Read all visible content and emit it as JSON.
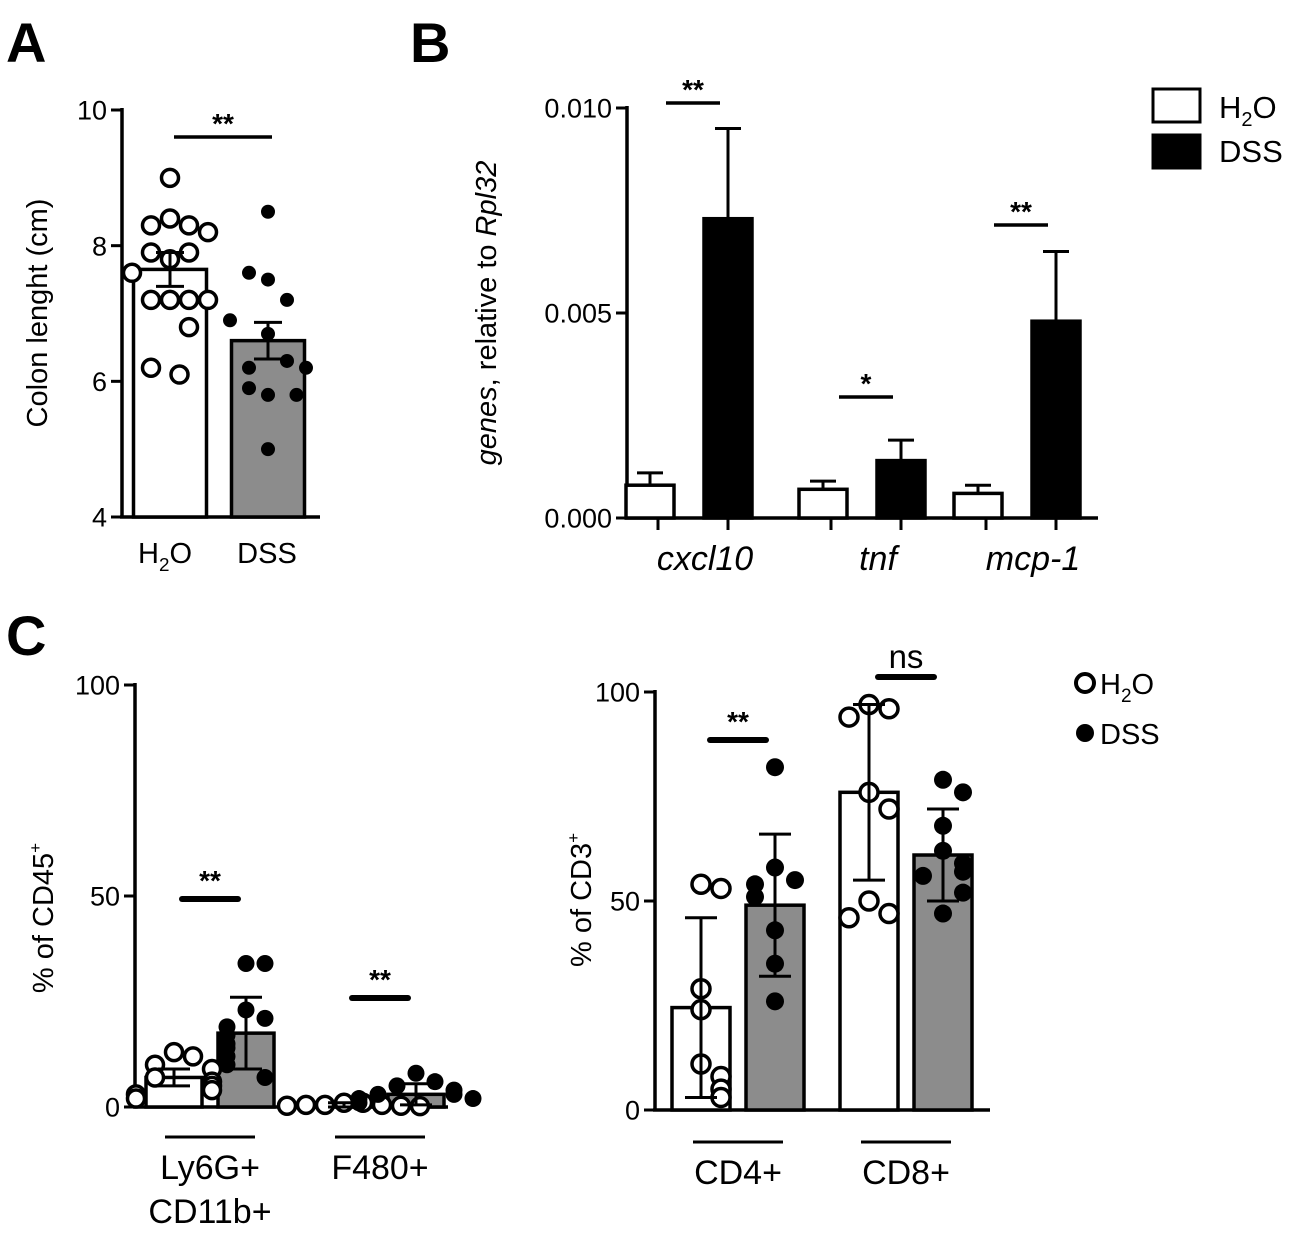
{
  "panels": {
    "A": "A",
    "B": "B",
    "C": "C"
  },
  "chart_data": [
    {
      "id": "A",
      "type": "bar",
      "categories": [
        "H2O",
        "DSS"
      ],
      "category_labels": [
        [
          "H",
          "2",
          "O"
        ],
        "DSS"
      ],
      "ylabel": "Colon lenght (cm)",
      "ylim": [
        4,
        10
      ],
      "yticks": [
        4,
        6,
        8,
        10
      ],
      "values": [
        7.65,
        6.6
      ],
      "errors": [
        0.25,
        0.27
      ],
      "fills": [
        "#ffffff",
        "#8c8c8c"
      ],
      "points": [
        [
          9.0,
          8.4,
          8.3,
          8.3,
          8.2,
          7.9,
          7.9,
          7.8,
          7.6,
          7.2,
          7.2,
          7.2,
          7.2,
          6.8,
          6.2,
          6.1
        ],
        [
          8.5,
          7.6,
          7.5,
          7.2,
          6.9,
          6.7,
          6.3,
          6.2,
          6.2,
          5.9,
          5.8,
          5.8,
          5.0
        ]
      ],
      "significance": [
        {
          "pair": [
            0,
            1
          ],
          "label": "**"
        }
      ]
    },
    {
      "id": "B",
      "type": "bar",
      "categories": [
        "cxcl10",
        "tnf",
        "mcp-1"
      ],
      "ylabel": {
        "italic": "genes",
        "plain": ", relative to ",
        "italic2": "Rpl32"
      },
      "ylim": [
        0,
        0.01
      ],
      "yticks": [
        "0.000",
        "0.005",
        "0.010"
      ],
      "series": [
        {
          "name": "H2O",
          "values": [
            0.0008,
            0.0007,
            0.0006
          ],
          "errors": [
            0.0003,
            0.0002,
            0.0002
          ],
          "color": "#ffffff"
        },
        {
          "name": "DSS",
          "values": [
            0.0073,
            0.0014,
            0.0048
          ],
          "errors": [
            0.0022,
            0.0005,
            0.0017
          ],
          "color": "#000000"
        }
      ],
      "legend": [
        {
          "label": [
            "H",
            "2",
            "O"
          ],
          "fill": "#ffffff"
        },
        {
          "label": "DSS",
          "fill": "#000000"
        }
      ],
      "significance": [
        "**",
        "*",
        "**"
      ]
    },
    {
      "id": "C1",
      "type": "bar",
      "categories": [
        "Ly6G+ CD11b+",
        "F480+"
      ],
      "category_lines": [
        [
          "Ly6G+",
          "CD11b+"
        ],
        [
          "F480+"
        ]
      ],
      "ylabel": {
        "base": "% of CD45",
        "sup": "+"
      },
      "ylim": [
        0,
        100
      ],
      "yticks": [
        0,
        50,
        100
      ],
      "series": [
        {
          "name": "H2O",
          "values": [
            7,
            0.5
          ],
          "errors": [
            2,
            0.5
          ],
          "color": "#ffffff",
          "points": [
            [
              13,
              12,
              10,
              9,
              7,
              6,
              5,
              4,
              3,
              2
            ],
            [
              1,
              1,
              0.5,
              0.5,
              0.5,
              0.3,
              0.3,
              0.2
            ]
          ]
        },
        {
          "name": "DSS",
          "values": [
            17.5,
            3
          ],
          "errors": [
            8.5,
            2.5
          ],
          "color": "#8c8c8c",
          "points": [
            [
              34,
              34,
              23,
              21,
              19,
              17,
              15,
              14,
              12,
              10,
              7
            ],
            [
              8,
              6,
              5,
              4,
              3,
              3,
              2,
              2,
              1
            ]
          ]
        }
      ],
      "significance": [
        "**",
        "**"
      ]
    },
    {
      "id": "C2",
      "type": "bar",
      "categories": [
        "CD4+",
        "CD8+"
      ],
      "ylabel": {
        "base": "% of CD3",
        "sup": "+"
      },
      "ylim": [
        0,
        100
      ],
      "yticks": [
        0,
        50,
        100
      ],
      "series": [
        {
          "name": "H2O",
          "values": [
            24.5,
            76
          ],
          "errors": [
            21.5,
            21
          ],
          "color": "#ffffff",
          "points": [
            [
              54,
              53,
              29,
              24,
              11,
              8,
              5,
              3
            ],
            [
              97,
              96,
              94,
              76,
              72,
              50,
              47,
              46
            ]
          ]
        },
        {
          "name": "DSS",
          "values": [
            49,
            61
          ],
          "errors": [
            17,
            11
          ],
          "color": "#8c8c8c",
          "points": [
            [
              82,
              58,
              55,
              54,
              51,
              43,
              35,
              26
            ],
            [
              79,
              76,
              68,
              62,
              59,
              57,
              56,
              52,
              47
            ]
          ]
        }
      ],
      "legend": [
        {
          "label": [
            "H",
            "2",
            "O"
          ],
          "marker": "open"
        },
        {
          "label": "DSS",
          "marker": "filled"
        }
      ],
      "significance": [
        "**",
        "ns"
      ]
    }
  ]
}
